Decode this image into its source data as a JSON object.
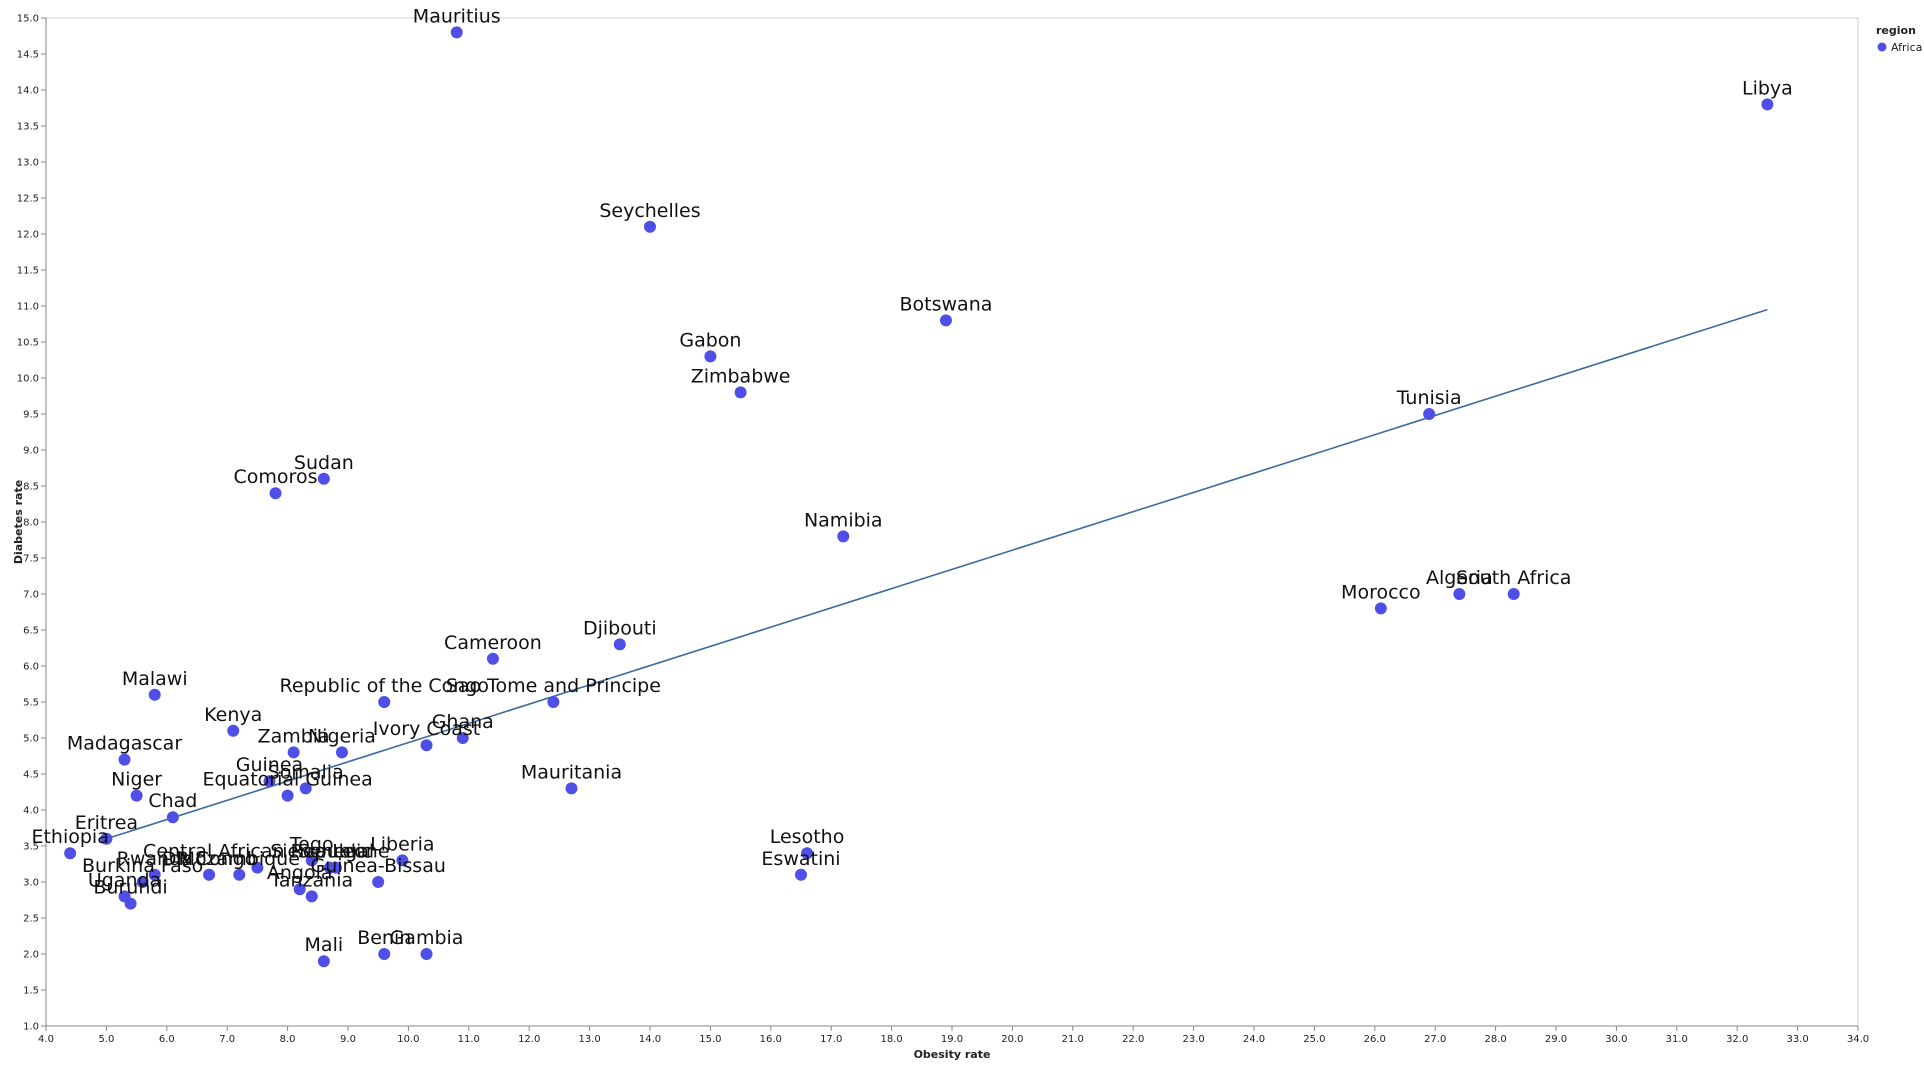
{
  "chart_data": {
    "type": "scatter",
    "xlabel": "Obesity rate",
    "ylabel": "Diabetes rate",
    "xlim": [
      4.0,
      34.0
    ],
    "ylim": [
      1.0,
      15.0
    ],
    "x_tick_step": 1.0,
    "y_tick_step": 0.5,
    "grid": false,
    "legend": {
      "title": "region",
      "entries": [
        {
          "name": "Africa",
          "color": "#4f4fe8"
        }
      ],
      "placement": "top-right"
    },
    "point_color": "#4f4fe8",
    "trendline": {
      "color": "#3b6aa0",
      "x": [
        5.0,
        32.5
      ],
      "y": [
        3.6,
        10.95
      ]
    },
    "points": [
      {
        "label": "Mauritius",
        "x": 10.8,
        "y": 14.8
      },
      {
        "label": "Libya",
        "x": 32.5,
        "y": 13.8
      },
      {
        "label": "Seychelles",
        "x": 14.0,
        "y": 12.1
      },
      {
        "label": "Botswana",
        "x": 18.9,
        "y": 10.8
      },
      {
        "label": "Gabon",
        "x": 15.0,
        "y": 10.3
      },
      {
        "label": "Zimbabwe",
        "x": 15.5,
        "y": 9.8
      },
      {
        "label": "Tunisia",
        "x": 26.9,
        "y": 9.5
      },
      {
        "label": "Sudan",
        "x": 8.6,
        "y": 8.6
      },
      {
        "label": "Comoros",
        "x": 7.8,
        "y": 8.4
      },
      {
        "label": "Namibia",
        "x": 17.2,
        "y": 7.8
      },
      {
        "label": "Algeria",
        "x": 27.4,
        "y": 7.0
      },
      {
        "label": "South Africa",
        "x": 28.3,
        "y": 7.0
      },
      {
        "label": "Morocco",
        "x": 26.1,
        "y": 6.8
      },
      {
        "label": "Djibouti",
        "x": 13.5,
        "y": 6.3
      },
      {
        "label": "Cameroon",
        "x": 11.4,
        "y": 6.1
      },
      {
        "label": "Malawi",
        "x": 5.8,
        "y": 5.6
      },
      {
        "label": "Republic of the Congo",
        "x": 9.6,
        "y": 5.5
      },
      {
        "label": "Sao Tome and Principe",
        "x": 12.4,
        "y": 5.5
      },
      {
        "label": "Kenya",
        "x": 7.1,
        "y": 5.1
      },
      {
        "label": "Ghana",
        "x": 10.9,
        "y": 5.0
      },
      {
        "label": "Ivory Coast",
        "x": 10.3,
        "y": 4.9
      },
      {
        "label": "Zambia",
        "x": 8.1,
        "y": 4.8
      },
      {
        "label": "Nigeria",
        "x": 8.9,
        "y": 4.8
      },
      {
        "label": "Madagascar",
        "x": 5.3,
        "y": 4.7
      },
      {
        "label": "Guinea",
        "x": 7.7,
        "y": 4.4
      },
      {
        "label": "Somalia",
        "x": 8.3,
        "y": 4.3
      },
      {
        "label": "Mauritania",
        "x": 12.7,
        "y": 4.3
      },
      {
        "label": "Equatorial Guinea",
        "x": 8.0,
        "y": 4.2
      },
      {
        "label": "Niger",
        "x": 5.5,
        "y": 4.2
      },
      {
        "label": "Chad",
        "x": 6.1,
        "y": 3.9
      },
      {
        "label": "Eritrea",
        "x": 5.0,
        "y": 3.6
      },
      {
        "label": "Ethiopia",
        "x": 4.4,
        "y": 3.4
      },
      {
        "label": "Lesotho",
        "x": 16.6,
        "y": 3.4
      },
      {
        "label": "Togo",
        "x": 8.4,
        "y": 3.3
      },
      {
        "label": "Sierra Leone",
        "x": 8.7,
        "y": 3.2
      },
      {
        "label": "Senegal",
        "x": 8.8,
        "y": 3.2
      },
      {
        "label": "Liberia",
        "x": 9.9,
        "y": 3.3
      },
      {
        "label": "Central African Republic",
        "x": 7.5,
        "y": 3.2
      },
      {
        "label": "Mozambique",
        "x": 7.2,
        "y": 3.1
      },
      {
        "label": "DR Congo",
        "x": 6.7,
        "y": 3.1
      },
      {
        "label": "Rwanda",
        "x": 5.8,
        "y": 3.1
      },
      {
        "label": "Eswatini",
        "x": 16.5,
        "y": 3.1
      },
      {
        "label": "Guinea-Bissau",
        "x": 9.5,
        "y": 3.0
      },
      {
        "label": "Burkina Faso",
        "x": 5.6,
        "y": 3.0
      },
      {
        "label": "Angola",
        "x": 8.2,
        "y": 2.9
      },
      {
        "label": "Tanzania",
        "x": 8.4,
        "y": 2.8
      },
      {
        "label": "Uganda",
        "x": 5.3,
        "y": 2.8
      },
      {
        "label": "Burundi",
        "x": 5.4,
        "y": 2.7
      },
      {
        "label": "Benin",
        "x": 9.6,
        "y": 2.0
      },
      {
        "label": "Gambia",
        "x": 10.3,
        "y": 2.0
      },
      {
        "label": "Mali",
        "x": 8.6,
        "y": 1.9
      }
    ]
  }
}
